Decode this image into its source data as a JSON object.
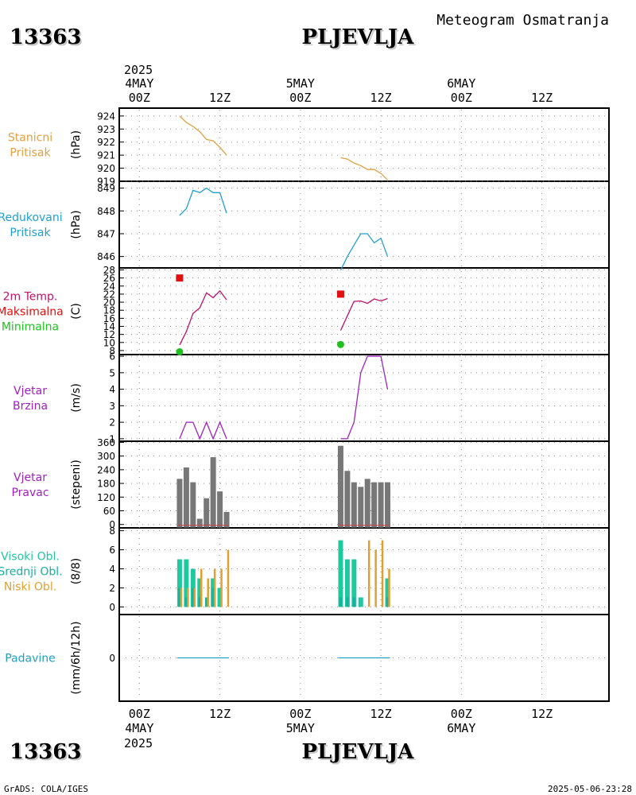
{
  "header": {
    "station_id": "13363",
    "station_name": "PLJEVLJA",
    "subtitle": "Meteogram Osmatranja",
    "year": "2025"
  },
  "footer": {
    "station_id": "13363",
    "station_name": "PLJEVLJA",
    "credit": "GrADS: COLA/IGES",
    "timestamp": "2025-05-06-23:28",
    "year": "2025"
  },
  "colors": {
    "pressure": "#e0a040",
    "reduced": "#1fa0d0",
    "temp": "#c0106a",
    "tmax": "#e01010",
    "tmin": "#20c020",
    "wind": "#a020c0",
    "bars": "#777777",
    "high_cloud": "#20c8a0",
    "mid_cloud": "#18b0a0",
    "low_cloud": "#e0a030",
    "precip": "#20a0c0"
  },
  "chart_data": {
    "type": "meteogram",
    "x_ticks": [
      "00Z",
      "12Z",
      "00Z",
      "12Z",
      "00Z",
      "12Z"
    ],
    "x_tick_hours": [
      0,
      12,
      24,
      36,
      48,
      60
    ],
    "x_range_hours": [
      -3,
      70
    ],
    "date_labels": [
      {
        "label": "4MAY",
        "hour": 0
      },
      {
        "label": "5MAY",
        "hour": 24
      },
      {
        "label": "6MAY",
        "hour": 48
      }
    ],
    "panels": [
      {
        "id": "station_pressure",
        "type": "line",
        "label_lines": [
          "Stanicni",
          "Pritisak"
        ],
        "label_colors": [
          "pressure",
          "pressure"
        ],
        "unit": "(hPa)",
        "ylim": [
          919,
          924.6
        ],
        "yticks": [
          919,
          920,
          921,
          922,
          923,
          924
        ],
        "color_key": "pressure",
        "series": [
          {
            "name": "day1",
            "x": [
              6,
              7,
              8,
              9,
              10,
              11,
              12,
              13
            ],
            "y": [
              924.0,
              923.5,
              923.2,
              922.8,
              922.2,
              922.1,
              921.6,
              921.0
            ]
          },
          {
            "name": "day2",
            "x": [
              30,
              31,
              32,
              33,
              34,
              35,
              36,
              37
            ],
            "y": [
              920.8,
              920.7,
              920.4,
              920.2,
              919.9,
              919.9,
              919.6,
              919.1
            ]
          }
        ]
      },
      {
        "id": "reduced_pressure",
        "type": "line",
        "label_lines": [
          "Redukovani",
          "Pritisak"
        ],
        "label_colors": [
          "reduced",
          "reduced"
        ],
        "unit": "(hPa)",
        "ylim": [
          845.5,
          849.3
        ],
        "yticks": [
          846,
          847,
          848,
          849
        ],
        "color_key": "reduced",
        "series": [
          {
            "name": "day1",
            "x": [
              6,
              7,
              8,
              9,
              10,
              11,
              12,
              13
            ],
            "y": [
              847.8,
              848.1,
              848.9,
              848.8,
              849.0,
              848.8,
              848.8,
              847.9
            ]
          },
          {
            "name": "day2",
            "x": [
              30,
              31,
              32,
              33,
              34,
              35,
              36,
              37
            ],
            "y": [
              845.4,
              846.0,
              846.5,
              847.0,
              847.0,
              846.6,
              846.8,
              846.0
            ]
          }
        ]
      },
      {
        "id": "temperature",
        "type": "line",
        "label_lines": [
          "2m Temp.",
          "Maksimalna",
          "Minimalna"
        ],
        "label_colors": [
          "temp",
          "tmax",
          "tmin"
        ],
        "unit": "(C)",
        "ylim": [
          7,
          28.5
        ],
        "yticks": [
          8,
          10,
          12,
          14,
          16,
          18,
          20,
          22,
          24,
          26,
          28
        ],
        "color_key": "temp",
        "series": [
          {
            "name": "day1",
            "x": [
              6,
              7,
              8,
              9,
              10,
              11,
              12,
              13
            ],
            "y": [
              9.4,
              12.7,
              17.2,
              18.6,
              22.3,
              21.1,
              22.8,
              20.6
            ]
          },
          {
            "name": "day2",
            "x": [
              30,
              31,
              32,
              33,
              34,
              35,
              36,
              37
            ],
            "y": [
              13.0,
              16.6,
              20.2,
              20.3,
              19.7,
              20.8,
              20.3,
              20.9
            ]
          }
        ],
        "tmax": [
          {
            "x": 6,
            "y": 26.0
          },
          {
            "x": 30,
            "y": 22.0
          }
        ],
        "tmin": [
          {
            "x": 6,
            "y": 7.7
          },
          {
            "x": 30,
            "y": 9.5
          }
        ]
      },
      {
        "id": "wind_speed",
        "type": "line",
        "label_lines": [
          "Vjetar",
          "Brzina"
        ],
        "label_colors": [
          "wind",
          "wind"
        ],
        "unit": "(m/s)",
        "ylim": [
          0.85,
          6.1
        ],
        "yticks": [
          1,
          2,
          3,
          4,
          5,
          6
        ],
        "color_key": "wind",
        "series": [
          {
            "name": "day1",
            "x": [
              6,
              7,
              8,
              9,
              10,
              11,
              12,
              13
            ],
            "y": [
              1,
              2,
              2,
              1,
              2,
              1,
              2,
              1
            ]
          },
          {
            "name": "day2",
            "x": [
              30,
              31,
              32,
              33,
              34,
              35,
              36,
              37
            ],
            "y": [
              1,
              1,
              2,
              5,
              6,
              6,
              6,
              4
            ]
          }
        ]
      },
      {
        "id": "wind_direction",
        "type": "bar",
        "label_lines": [
          "Vjetar",
          "Pravac"
        ],
        "label_colors": [
          "wind",
          "wind"
        ],
        "unit": "(stepeni)",
        "ylim": [
          -15,
          365
        ],
        "yticks": [
          0,
          60,
          120,
          180,
          240,
          300,
          360
        ],
        "color_key": "bars",
        "x": [
          6,
          7,
          8,
          9,
          10,
          11,
          12,
          13,
          30,
          31,
          32,
          33,
          34,
          35,
          36,
          37
        ],
        "values": [
          200,
          250,
          185,
          25,
          115,
          295,
          145,
          55,
          345,
          235,
          185,
          165,
          200,
          185,
          185,
          185
        ]
      },
      {
        "id": "clouds",
        "type": "bar",
        "label_lines": [
          "Visoki Obl.",
          "Srednji Obl.",
          "Niski Obl."
        ],
        "label_colors": [
          "high_cloud",
          "mid_cloud",
          "low_cloud"
        ],
        "unit": "(8/8)",
        "ylim": [
          -0.8,
          8.3
        ],
        "yticks": [
          0,
          2,
          4,
          6,
          8
        ],
        "x": [
          6,
          7,
          8,
          9,
          10,
          11,
          12,
          13,
          30,
          31,
          32,
          33,
          34,
          35,
          36,
          37
        ],
        "series": [
          {
            "name": "Visoki Obl.",
            "color_key": "high_cloud",
            "values": [
              5,
              5,
              4,
              3,
              0,
              3,
              2,
              0,
              7,
              5,
              5,
              1,
              0,
              0,
              0,
              3
            ]
          },
          {
            "name": "Srednji Obl.",
            "color_key": "mid_cloud",
            "values": [
              2,
              1,
              2,
              1,
              1,
              2,
              0,
              0,
              1,
              1,
              1,
              0,
              0,
              0,
              0,
              1
            ]
          },
          {
            "name": "Niski Obl.",
            "color_key": "low_cloud",
            "values": [
              2,
              2,
              2,
              4,
              3,
              4,
              4,
              6,
              0,
              0,
              0,
              0,
              7,
              6,
              7,
              4
            ]
          }
        ]
      },
      {
        "id": "precipitation",
        "type": "bar",
        "label_lines": [
          "Padavine"
        ],
        "label_colors": [
          "precip"
        ],
        "unit": "(mm/6h/12h)",
        "ylim": [
          -5,
          5
        ],
        "yticks": [
          0
        ],
        "color_key": "precip",
        "x": [
          6,
          12,
          30,
          36
        ],
        "values": [
          0,
          0,
          0,
          0
        ]
      }
    ]
  }
}
